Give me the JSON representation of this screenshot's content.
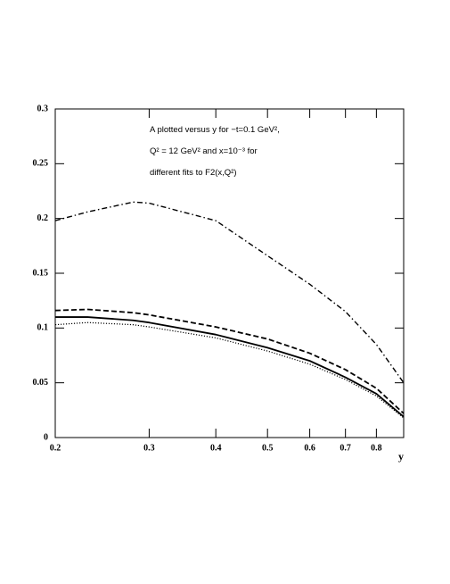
{
  "chart_data": {
    "type": "line",
    "x_label": "y",
    "annotation": [
      "A plotted versus y for −t=0.1 GeV²,",
      "Q² = 12 GeV² and x=10⁻³ for",
      "different fits to F2(x,Q²)"
    ],
    "x": [
      0.2,
      0.23,
      0.28,
      0.3,
      0.4,
      0.5,
      0.6,
      0.7,
      0.8,
      0.9
    ],
    "series": [
      {
        "color": "#000000",
        "style": "dashdot",
        "values": [
          0.198,
          0.206,
          0.215,
          0.214,
          0.198,
          0.166,
          0.14,
          0.115,
          0.085,
          0.05
        ]
      },
      {
        "color": "#000000",
        "style": "dashed",
        "values": [
          0.116,
          0.117,
          0.114,
          0.112,
          0.101,
          0.09,
          0.077,
          0.062,
          0.045,
          0.022
        ]
      },
      {
        "color": "#000000",
        "style": "solid",
        "values": [
          0.11,
          0.11,
          0.107,
          0.105,
          0.094,
          0.082,
          0.07,
          0.055,
          0.04,
          0.019
        ]
      },
      {
        "color": "#000000",
        "style": "dotted",
        "values": [
          0.103,
          0.105,
          0.103,
          0.101,
          0.091,
          0.079,
          0.067,
          0.053,
          0.038,
          0.018
        ]
      }
    ],
    "xscale": "log",
    "xlim": [
      0.2,
      0.9
    ],
    "xticks": [
      0.2,
      0.3,
      0.4,
      0.5,
      0.6,
      0.7,
      0.8
    ],
    "ylim": [
      0,
      0.3
    ],
    "yticks": [
      0,
      0.05,
      0.1,
      0.15,
      0.2,
      0.25,
      0.3
    ]
  }
}
